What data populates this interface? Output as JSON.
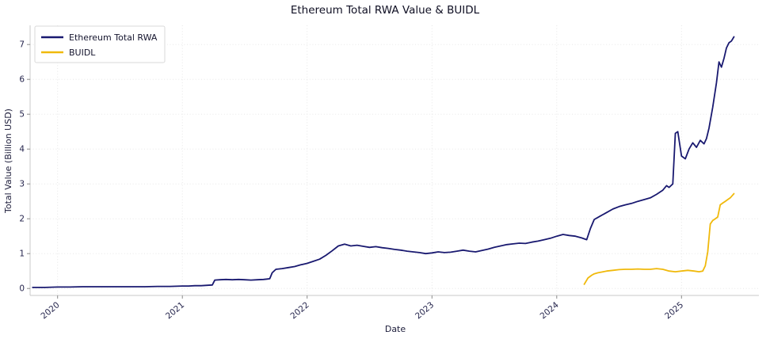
{
  "chart_data": {
    "type": "line",
    "title": "Ethereum Total RWA Value & BUIDL",
    "xlabel": "Date",
    "ylabel": "Total Value (Billion USD)",
    "xlim": [
      2019.78,
      2025.62
    ],
    "ylim": [
      -0.2,
      7.55
    ],
    "xticks": [
      2020,
      2021,
      2022,
      2023,
      2024,
      2025
    ],
    "yticks": [
      0,
      1,
      2,
      3,
      4,
      5,
      6,
      7
    ],
    "grid": true,
    "legend_position": "upper left",
    "background_color": "#ffffff",
    "series": [
      {
        "name": "Ethereum Total RWA",
        "color": "#191970",
        "x": [
          2019.8,
          2019.9,
          2020.0,
          2020.1,
          2020.2,
          2020.3,
          2020.4,
          2020.5,
          2020.6,
          2020.7,
          2020.8,
          2020.9,
          2021.0,
          2021.05,
          2021.1,
          2021.15,
          2021.2,
          2021.24,
          2021.26,
          2021.3,
          2021.35,
          2021.4,
          2021.45,
          2021.5,
          2021.55,
          2021.6,
          2021.65,
          2021.68,
          2021.7,
          2021.72,
          2021.75,
          2021.8,
          2021.85,
          2021.9,
          2021.95,
          2022.0,
          2022.05,
          2022.1,
          2022.15,
          2022.2,
          2022.25,
          2022.3,
          2022.35,
          2022.4,
          2022.45,
          2022.5,
          2022.55,
          2022.6,
          2022.65,
          2022.7,
          2022.75,
          2022.8,
          2022.85,
          2022.9,
          2022.95,
          2023.0,
          2023.05,
          2023.1,
          2023.15,
          2023.2,
          2023.25,
          2023.3,
          2023.35,
          2023.4,
          2023.45,
          2023.5,
          2023.55,
          2023.6,
          2023.65,
          2023.7,
          2023.75,
          2023.8,
          2023.85,
          2023.9,
          2023.95,
          2024.0,
          2024.05,
          2024.1,
          2024.15,
          2024.2,
          2024.24,
          2024.27,
          2024.3,
          2024.35,
          2024.4,
          2024.45,
          2024.5,
          2024.55,
          2024.6,
          2024.65,
          2024.7,
          2024.75,
          2024.8,
          2024.85,
          2024.88,
          2024.9,
          2024.93,
          2024.95,
          2024.97,
          2025.0,
          2025.03,
          2025.06,
          2025.09,
          2025.12,
          2025.15,
          2025.18,
          2025.2,
          2025.22,
          2025.25,
          2025.28,
          2025.3,
          2025.32,
          2025.34,
          2025.36,
          2025.38,
          2025.4,
          2025.42
        ],
        "y": [
          0.03,
          0.03,
          0.04,
          0.04,
          0.05,
          0.05,
          0.05,
          0.05,
          0.05,
          0.05,
          0.06,
          0.06,
          0.07,
          0.07,
          0.08,
          0.08,
          0.09,
          0.1,
          0.24,
          0.25,
          0.26,
          0.25,
          0.26,
          0.25,
          0.24,
          0.25,
          0.26,
          0.27,
          0.28,
          0.45,
          0.55,
          0.57,
          0.6,
          0.63,
          0.68,
          0.72,
          0.78,
          0.84,
          0.95,
          1.08,
          1.22,
          1.27,
          1.22,
          1.24,
          1.21,
          1.18,
          1.2,
          1.17,
          1.15,
          1.12,
          1.1,
          1.07,
          1.05,
          1.03,
          1.0,
          1.02,
          1.05,
          1.03,
          1.04,
          1.07,
          1.1,
          1.07,
          1.05,
          1.09,
          1.13,
          1.18,
          1.22,
          1.26,
          1.28,
          1.3,
          1.29,
          1.33,
          1.36,
          1.4,
          1.44,
          1.5,
          1.55,
          1.52,
          1.5,
          1.45,
          1.4,
          1.72,
          1.98,
          2.08,
          2.18,
          2.28,
          2.35,
          2.4,
          2.44,
          2.5,
          2.55,
          2.6,
          2.7,
          2.82,
          2.95,
          2.9,
          3.0,
          4.45,
          4.5,
          3.8,
          3.72,
          4.0,
          4.18,
          4.05,
          4.25,
          4.15,
          4.3,
          4.6,
          5.2,
          5.9,
          6.5,
          6.35,
          6.6,
          6.9,
          7.05,
          7.1,
          7.22
        ]
      },
      {
        "name": "BUIDL",
        "color": "#F0B90B",
        "x": [
          2024.22,
          2024.25,
          2024.28,
          2024.3,
          2024.33,
          2024.36,
          2024.4,
          2024.45,
          2024.5,
          2024.55,
          2024.6,
          2024.65,
          2024.7,
          2024.75,
          2024.8,
          2024.85,
          2024.9,
          2024.95,
          2025.0,
          2025.05,
          2025.1,
          2025.14,
          2025.17,
          2025.19,
          2025.21,
          2025.23,
          2025.25,
          2025.27,
          2025.29,
          2025.31,
          2025.33,
          2025.35,
          2025.37,
          2025.39,
          2025.41,
          2025.42
        ],
        "y": [
          0.12,
          0.3,
          0.38,
          0.42,
          0.45,
          0.47,
          0.5,
          0.52,
          0.54,
          0.55,
          0.55,
          0.56,
          0.55,
          0.55,
          0.57,
          0.55,
          0.5,
          0.48,
          0.5,
          0.52,
          0.5,
          0.48,
          0.5,
          0.65,
          1.05,
          1.85,
          1.95,
          2.0,
          2.05,
          2.4,
          2.45,
          2.5,
          2.55,
          2.6,
          2.68,
          2.72
        ]
      }
    ]
  }
}
